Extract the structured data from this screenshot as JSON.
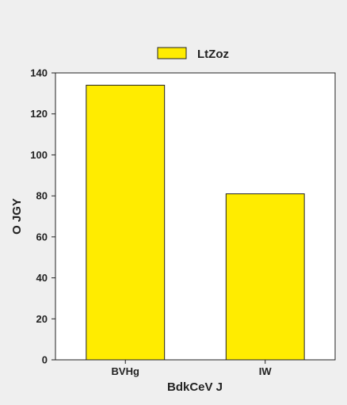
{
  "chart_data": {
    "type": "bar",
    "categories": [
      "BVHg",
      "IW"
    ],
    "series": [
      {
        "name": "LtZoz",
        "values": [
          134,
          81
        ]
      }
    ],
    "xlabel": "BdkCeV J",
    "ylabel": "O JGY",
    "ylim": [
      0,
      140
    ],
    "yticks": [
      0,
      20,
      40,
      60,
      80,
      100,
      120,
      140
    ],
    "grid": false,
    "legend_position": "top-center",
    "colors": {
      "bar_fill": "#ffec00",
      "bar_stroke": "#222222",
      "plot_background": "#ffffff",
      "page_background": "#efefef"
    }
  }
}
